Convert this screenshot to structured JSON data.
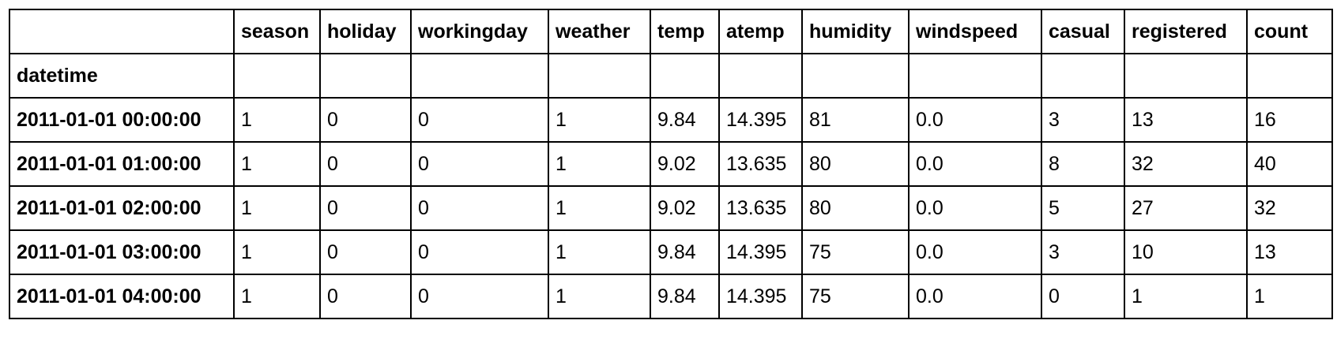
{
  "table": {
    "index_name": "datetime",
    "columns": [
      "season",
      "holiday",
      "workingday",
      "weather",
      "temp",
      "atemp",
      "humidity",
      "windspeed",
      "casual",
      "registered",
      "count"
    ],
    "rows": [
      {
        "index": "2011-01-01 00:00:00",
        "values": [
          "1",
          "0",
          "0",
          "1",
          "9.84",
          "14.395",
          "81",
          "0.0",
          "3",
          "13",
          "16"
        ]
      },
      {
        "index": "2011-01-01 01:00:00",
        "values": [
          "1",
          "0",
          "0",
          "1",
          "9.02",
          "13.635",
          "80",
          "0.0",
          "8",
          "32",
          "40"
        ]
      },
      {
        "index": "2011-01-01 02:00:00",
        "values": [
          "1",
          "0",
          "0",
          "1",
          "9.02",
          "13.635",
          "80",
          "0.0",
          "5",
          "27",
          "32"
        ]
      },
      {
        "index": "2011-01-01 03:00:00",
        "values": [
          "1",
          "0",
          "0",
          "1",
          "9.84",
          "14.395",
          "75",
          "0.0",
          "3",
          "10",
          "13"
        ]
      },
      {
        "index": "2011-01-01 04:00:00",
        "values": [
          "1",
          "0",
          "0",
          "1",
          "9.84",
          "14.395",
          "75",
          "0.0",
          "0",
          "1",
          "1"
        ]
      }
    ]
  }
}
